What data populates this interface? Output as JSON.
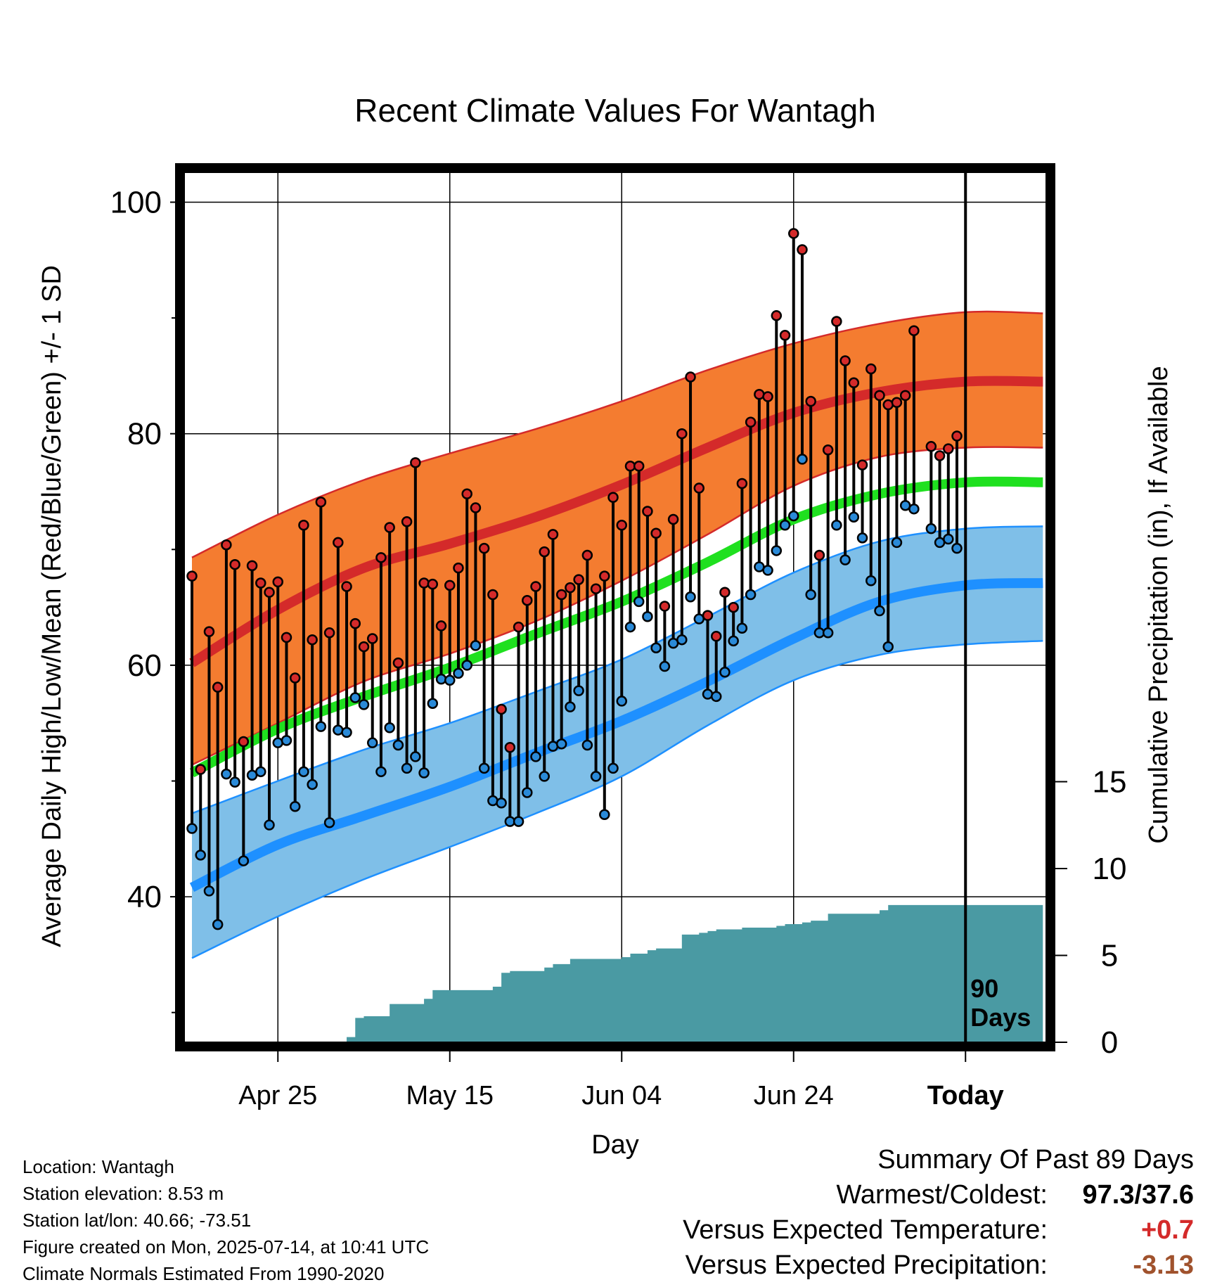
{
  "title": "Recent Climate Values For Wantagh",
  "colors": {
    "high_band": "#f47c30",
    "high_mean": "#d42a2a",
    "mean_line": "#1fe01f",
    "low_band": "#7fbfe8",
    "low_mean": "#1e90ff",
    "precip": "#4a9aa3",
    "high_dot": "#d42a2a",
    "low_dot": "#2a8ad8",
    "warm_value": "#d42a2a",
    "precip_value": "#a0522d"
  },
  "chart_data": {
    "type": "line",
    "title": "Recent Climate Values For Wantagh",
    "xlabel": "Day",
    "ylabel": "Average Daily High/Low/Mean (Red/Blue/Green) +/- 1 SD",
    "y2label": "Cumulative Precipitation (in), If Available",
    "ylim": [
      28,
      103
    ],
    "y2lim": [
      0,
      34
    ],
    "x_ticks": [
      "Apr 25",
      "May 15",
      "Jun 04",
      "Jun 24",
      "Today"
    ],
    "x_tick_days": [
      10,
      30,
      50,
      70,
      90
    ],
    "y_ticks": [
      40,
      60,
      80,
      100
    ],
    "y_minor_ticks": [
      30,
      50,
      70,
      90
    ],
    "y2_ticks": [
      0,
      5,
      10,
      15
    ],
    "today_label": "90 Days",
    "grid": true,
    "normals": {
      "days": [
        0,
        10,
        20,
        30,
        40,
        50,
        60,
        70,
        80,
        90,
        99
      ],
      "high_mean": [
        60.2,
        64.8,
        68.4,
        70.5,
        72.8,
        75.6,
        78.8,
        81.8,
        83.6,
        84.5,
        84.5
      ],
      "high_upper": [
        69.3,
        73.0,
        76.0,
        78.3,
        80.4,
        82.8,
        85.5,
        87.8,
        89.5,
        90.5,
        90.4
      ],
      "high_lower": [
        51.4,
        55.0,
        58.6,
        61.0,
        63.8,
        67.3,
        71.3,
        75.5,
        78.0,
        78.8,
        78.8
      ],
      "mean": [
        50.7,
        54.5,
        57.3,
        59.8,
        62.7,
        65.5,
        68.9,
        72.6,
        74.8,
        75.8,
        75.8
      ],
      "low_mean": [
        40.8,
        44.5,
        47.0,
        49.5,
        52.4,
        55.2,
        58.6,
        62.3,
        65.5,
        66.9,
        67.1
      ],
      "low_upper": [
        47.2,
        50.0,
        52.7,
        55.0,
        57.7,
        60.5,
        64.2,
        68.0,
        70.7,
        71.8,
        72.0
      ],
      "low_lower": [
        34.7,
        38.3,
        41.5,
        44.3,
        47.2,
        50.4,
        54.8,
        58.7,
        60.9,
        61.8,
        62.1
      ]
    },
    "series": [
      {
        "name": "High",
        "x": [
          0,
          1,
          2,
          3,
          4,
          5,
          6,
          7,
          8,
          9,
          10,
          11,
          12,
          13,
          14,
          15,
          16,
          17,
          18,
          19,
          20,
          21,
          22,
          23,
          24,
          25,
          26,
          27,
          28,
          29,
          30,
          31,
          32,
          33,
          34,
          35,
          36,
          37,
          38,
          39,
          40,
          41,
          42,
          43,
          44,
          45,
          46,
          47,
          48,
          49,
          50,
          51,
          52,
          53,
          54,
          55,
          56,
          57,
          58,
          59,
          60,
          61,
          62,
          63,
          64,
          65,
          66,
          67,
          68,
          69,
          70,
          71,
          72,
          73,
          74,
          75,
          76,
          77,
          78,
          79,
          80,
          81,
          82,
          83,
          84,
          85,
          86,
          87,
          88,
          89
        ],
        "values": [
          67.7,
          51.0,
          62.9,
          58.1,
          70.4,
          68.7,
          53.4,
          68.6,
          67.1,
          66.3,
          67.2,
          62.4,
          58.9,
          72.1,
          62.2,
          74.1,
          62.8,
          70.6,
          66.8,
          63.6,
          61.6,
          62.3,
          69.3,
          71.9,
          60.2,
          72.4,
          77.5,
          67.1,
          67.0,
          63.4,
          66.9,
          68.4,
          74.8,
          73.6,
          70.1,
          66.1,
          56.2,
          52.9,
          63.3,
          65.6,
          66.8,
          69.8,
          71.3,
          66.1,
          66.7,
          67.4,
          69.5,
          66.6,
          67.7,
          74.5,
          72.1,
          77.2,
          77.2,
          73.3,
          71.4,
          65.1,
          72.6,
          80.0,
          84.9,
          75.3,
          64.3,
          62.5,
          66.3,
          65.0,
          75.7,
          81.0,
          83.4,
          83.2,
          90.2,
          88.5,
          97.3,
          95.9,
          82.8,
          69.5,
          78.6,
          89.7,
          86.3,
          84.4,
          77.3,
          85.6,
          83.3,
          82.5,
          82.7,
          83.3,
          88.9,
          null,
          78.9,
          78.1,
          78.7,
          79.8
        ]
      },
      {
        "name": "Low",
        "x": [
          0,
          1,
          2,
          3,
          4,
          5,
          6,
          7,
          8,
          9,
          10,
          11,
          12,
          13,
          14,
          15,
          16,
          17,
          18,
          19,
          20,
          21,
          22,
          23,
          24,
          25,
          26,
          27,
          28,
          29,
          30,
          31,
          32,
          33,
          34,
          35,
          36,
          37,
          38,
          39,
          40,
          41,
          42,
          43,
          44,
          45,
          46,
          47,
          48,
          49,
          50,
          51,
          52,
          53,
          54,
          55,
          56,
          57,
          58,
          59,
          60,
          61,
          62,
          63,
          64,
          65,
          66,
          67,
          68,
          69,
          70,
          71,
          72,
          73,
          74,
          75,
          76,
          77,
          78,
          79,
          80,
          81,
          82,
          83,
          84,
          85,
          86,
          87,
          88,
          89
        ],
        "values": [
          45.9,
          43.6,
          40.5,
          37.6,
          50.6,
          49.9,
          43.1,
          50.5,
          50.8,
          46.2,
          53.3,
          53.5,
          47.8,
          50.8,
          49.7,
          54.7,
          46.4,
          54.4,
          54.2,
          57.2,
          56.6,
          53.3,
          50.8,
          54.6,
          53.1,
          51.1,
          52.1,
          50.7,
          56.7,
          58.8,
          58.7,
          59.3,
          60.0,
          61.7,
          51.1,
          48.3,
          48.1,
          46.5,
          46.5,
          49.0,
          52.1,
          50.4,
          53.0,
          53.2,
          56.4,
          57.8,
          53.1,
          50.4,
          47.1,
          51.1,
          56.9,
          63.3,
          65.5,
          64.2,
          61.5,
          59.9,
          61.9,
          62.2,
          65.9,
          64.0,
          57.5,
          57.3,
          59.4,
          62.1,
          63.2,
          66.1,
          68.5,
          68.2,
          69.9,
          72.1,
          72.9,
          77.8,
          66.1,
          62.8,
          62.8,
          72.1,
          69.1,
          72.8,
          71.0,
          67.3,
          64.7,
          61.6,
          70.6,
          73.8,
          73.5,
          null,
          71.8,
          70.6,
          70.9,
          70.1
        ]
      }
    ],
    "precipitation": {
      "days": [
        0,
        17,
        18,
        19,
        20,
        21,
        22,
        23,
        24,
        25,
        26,
        27,
        28,
        29,
        30,
        31,
        32,
        33,
        34,
        35,
        36,
        37,
        38,
        39,
        40,
        41,
        42,
        43,
        44,
        45,
        46,
        47,
        48,
        49,
        50,
        51,
        52,
        53,
        54,
        55,
        56,
        57,
        58,
        59,
        60,
        61,
        62,
        63,
        64,
        65,
        66,
        67,
        68,
        69,
        70,
        71,
        72,
        73,
        74,
        75,
        76,
        77,
        78,
        79,
        80,
        81,
        82,
        83,
        84,
        85,
        86,
        87,
        88,
        89,
        90,
        99
      ],
      "values": [
        0,
        0,
        0.3,
        1.4,
        1.5,
        1.5,
        1.5,
        2.2,
        2.2,
        2.2,
        2.2,
        2.5,
        3.0,
        3.0,
        3.0,
        3.0,
        3.0,
        3.0,
        3.0,
        3.2,
        4.0,
        4.1,
        4.1,
        4.1,
        4.1,
        4.3,
        4.5,
        4.5,
        4.8,
        4.8,
        4.8,
        4.8,
        4.8,
        4.8,
        4.9,
        5.1,
        5.1,
        5.3,
        5.4,
        5.4,
        5.4,
        6.2,
        6.2,
        6.3,
        6.4,
        6.5,
        6.5,
        6.5,
        6.6,
        6.6,
        6.6,
        6.6,
        6.7,
        6.8,
        6.8,
        6.9,
        7.0,
        7.0,
        7.4,
        7.4,
        7.4,
        7.4,
        7.4,
        7.4,
        7.6,
        7.9,
        7.9,
        7.9,
        7.9,
        7.9,
        7.9,
        7.9,
        7.9,
        7.9,
        7.9,
        7.9
      ]
    }
  },
  "footer_left": [
    "Location: Wantagh",
    "Station elevation: 8.53 m",
    "Station lat/lon: 40.66; -73.51",
    "Figure created on Mon, 2025-07-14, at 10:41 UTC",
    "Climate Normals Estimated From 1990-2020"
  ],
  "summary": {
    "title": "Summary Of Past 89 Days",
    "warm_cold_label": "Warmest/Coldest:",
    "warm_cold_value": "97.3/37.6",
    "temp_label": "Versus Expected Temperature:",
    "temp_value": "+0.7",
    "precip_label": "Versus Expected Precipitation:",
    "precip_value": "-3.13"
  }
}
